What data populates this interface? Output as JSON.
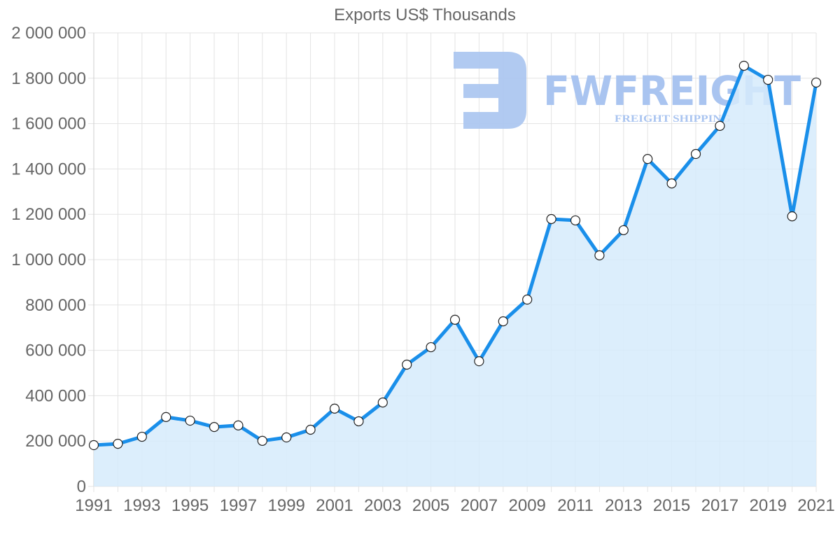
{
  "chart_data": {
    "type": "area",
    "title": "Exports US$ Thousands",
    "xlabel": "",
    "ylabel": "",
    "ylim": [
      0,
      2000000
    ],
    "grid": true,
    "legend": "none",
    "y_ticks": [
      "0",
      "200 000",
      "400 000",
      "600 000",
      "800 000",
      "1 000 000",
      "1 200 000",
      "1 400 000",
      "1 600 000",
      "1 800 000",
      "2 000 000"
    ],
    "y_tick_values": [
      0,
      200000,
      400000,
      600000,
      800000,
      1000000,
      1200000,
      1400000,
      1600000,
      1800000,
      2000000
    ],
    "x_tick_labels": [
      "1991",
      "1993",
      "1995",
      "1997",
      "1999",
      "2001",
      "2003",
      "2005",
      "2007",
      "2009",
      "2011",
      "2013",
      "2015",
      "2017",
      "2019",
      "2021"
    ],
    "categories": [
      "1991",
      "1992",
      "1993",
      "1994",
      "1995",
      "1996",
      "1997",
      "1998",
      "1999",
      "2000",
      "2001",
      "2002",
      "2003",
      "2004",
      "2005",
      "2006",
      "2007",
      "2008",
      "2009",
      "2010",
      "2011",
      "2012",
      "2013",
      "2014",
      "2015",
      "2016",
      "2017",
      "2018",
      "2019",
      "2020",
      "2021"
    ],
    "series": [
      {
        "name": "Exports US$ Thousands",
        "values": [
          182000,
          188000,
          219000,
          306000,
          290000,
          262000,
          269000,
          201000,
          216000,
          250000,
          343000,
          287000,
          370000,
          537000,
          614000,
          735000,
          552000,
          728000,
          824000,
          1179000,
          1173000,
          1019000,
          1130000,
          1444000,
          1336000,
          1466000,
          1590000,
          1855000,
          1793000,
          1191000,
          1781000
        ]
      }
    ],
    "colors": {
      "line": "#1a8fea",
      "fill": "#d6ebfc",
      "grid": "#e3e3e3",
      "axis_text": "#666666"
    }
  },
  "watermark": {
    "brand": "FWFREIGHT",
    "tagline": "FREIGHT SHIPPING",
    "color": "#a9c4f0"
  }
}
